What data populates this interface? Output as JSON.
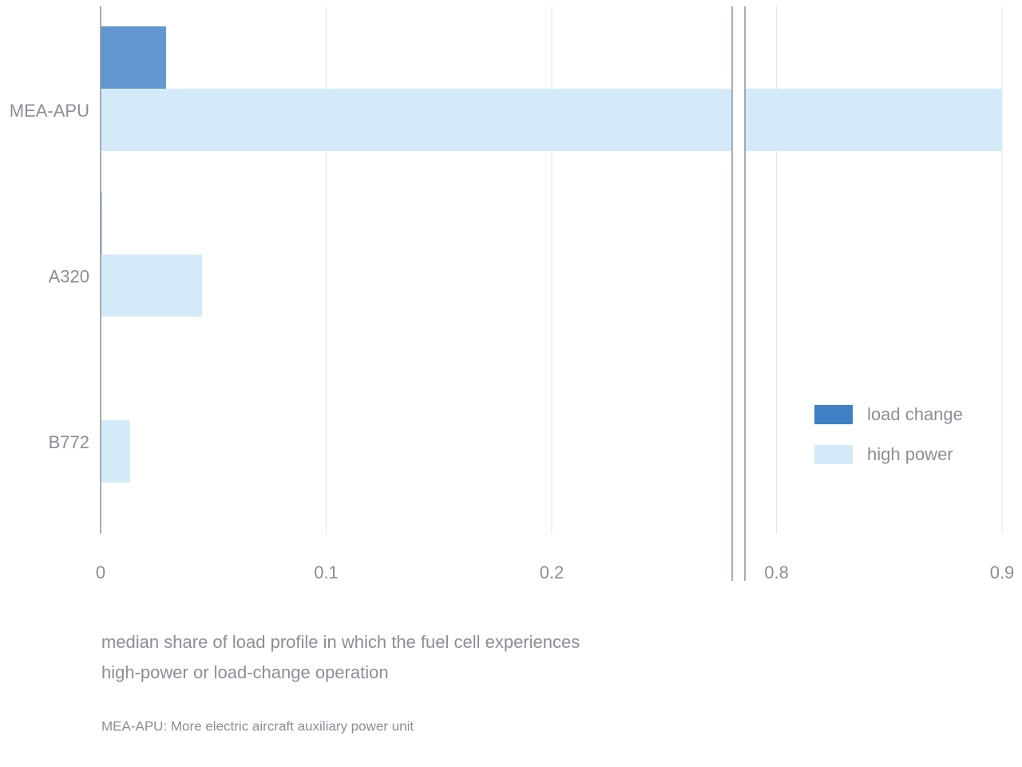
{
  "chart_data": {
    "type": "bar",
    "orientation": "horizontal",
    "categories": [
      "MEA-APU",
      "A320",
      "B772"
    ],
    "series": [
      {
        "name": "load change",
        "color": "#3f80c5",
        "values": [
          0.029,
          0.0005,
          0
        ]
      },
      {
        "name": "high power",
        "color": "#d5eaf9",
        "values": [
          0.9,
          0.045,
          0.013
        ]
      }
    ],
    "xlim": [
      0,
      0.9
    ],
    "x_break": [
      0.28,
      0.786
    ],
    "xticks": [
      0,
      0.1,
      0.2,
      0.8,
      0.9
    ],
    "grid": true,
    "legend": "lower right",
    "x_label": [
      "median share of load profile in which the fuel cell experiences",
      "high-power or load-change operation"
    ],
    "note": "MEA-APU: More electric aircraft auxiliary power unit"
  }
}
